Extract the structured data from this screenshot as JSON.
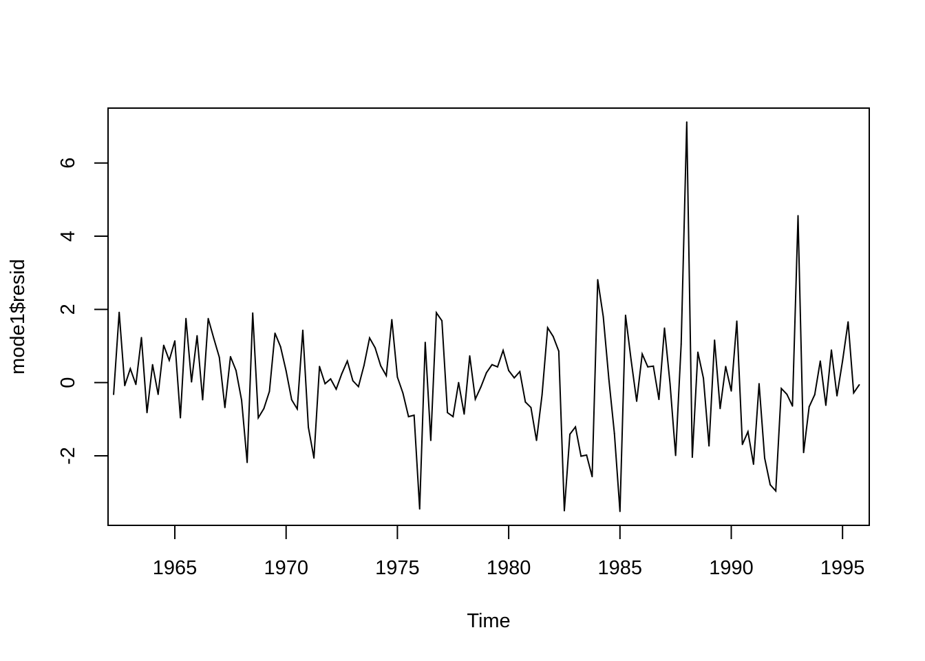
{
  "chart_data": {
    "type": "line",
    "title": "",
    "xlabel": "Time",
    "ylabel": "mode1$resid",
    "xlim": [
      1962.0,
      1996.2
    ],
    "ylim": [
      -3.9,
      7.5
    ],
    "x_ticks": [
      1965,
      1970,
      1975,
      1980,
      1985,
      1990,
      1995
    ],
    "x_tick_labels": [
      "1965",
      "1970",
      "1975",
      "1980",
      "1985",
      "1990",
      "1995"
    ],
    "y_ticks": [
      -2,
      0,
      2,
      4,
      6
    ],
    "y_tick_labels": [
      "-2",
      "0",
      "2",
      "4",
      "6"
    ],
    "grid": false,
    "line_color": "#000000",
    "series": [
      {
        "start": 1962.25,
        "frequency": 4,
        "values": [
          -0.32,
          1.92,
          -0.08,
          0.38,
          -0.05,
          1.23,
          -0.82,
          0.49,
          -0.32,
          1.02,
          0.61,
          1.14,
          -0.96,
          1.75,
          0.02,
          1.28,
          -0.47,
          1.75,
          1.21,
          0.69,
          -0.68,
          0.71,
          0.33,
          -0.48,
          -2.18,
          1.9,
          -0.96,
          -0.71,
          -0.24,
          1.35,
          0.98,
          0.32,
          -0.47,
          -0.72,
          1.43,
          -1.22,
          -2.06,
          0.44,
          -0.03,
          0.1,
          -0.18,
          0.24,
          0.59,
          0.05,
          -0.11,
          0.47,
          1.22,
          0.95,
          0.46,
          0.19,
          1.72,
          0.15,
          -0.29,
          -0.93,
          -0.89,
          -3.45,
          1.1,
          -1.58,
          1.91,
          1.69,
          -0.82,
          -0.93,
          0.0,
          -0.86,
          0.73,
          -0.45,
          -0.12,
          0.27,
          0.49,
          0.43,
          0.88,
          0.33,
          0.13,
          0.3,
          -0.53,
          -0.68,
          -1.58,
          -0.33,
          1.5,
          1.26,
          0.86,
          -3.5,
          -1.41,
          -1.21,
          -2.01,
          -1.98,
          -2.57,
          2.81,
          1.8,
          0.1,
          -1.39,
          -3.52,
          1.84,
          0.62,
          -0.51,
          0.78,
          0.43,
          0.45,
          -0.46,
          1.49,
          -0.03,
          -1.99,
          1.05,
          7.12,
          -2.04,
          0.83,
          0.12,
          -1.73,
          1.16,
          -0.71,
          0.44,
          -0.23,
          1.68,
          -1.69,
          -1.34,
          -2.23,
          -0.03,
          -2.06,
          -2.79,
          -2.96,
          -0.16,
          -0.32,
          -0.64,
          4.56,
          -1.91,
          -0.66,
          -0.33,
          0.59,
          -0.62,
          0.89,
          -0.36,
          0.59,
          1.66,
          -0.28,
          -0.06
        ]
      }
    ]
  }
}
